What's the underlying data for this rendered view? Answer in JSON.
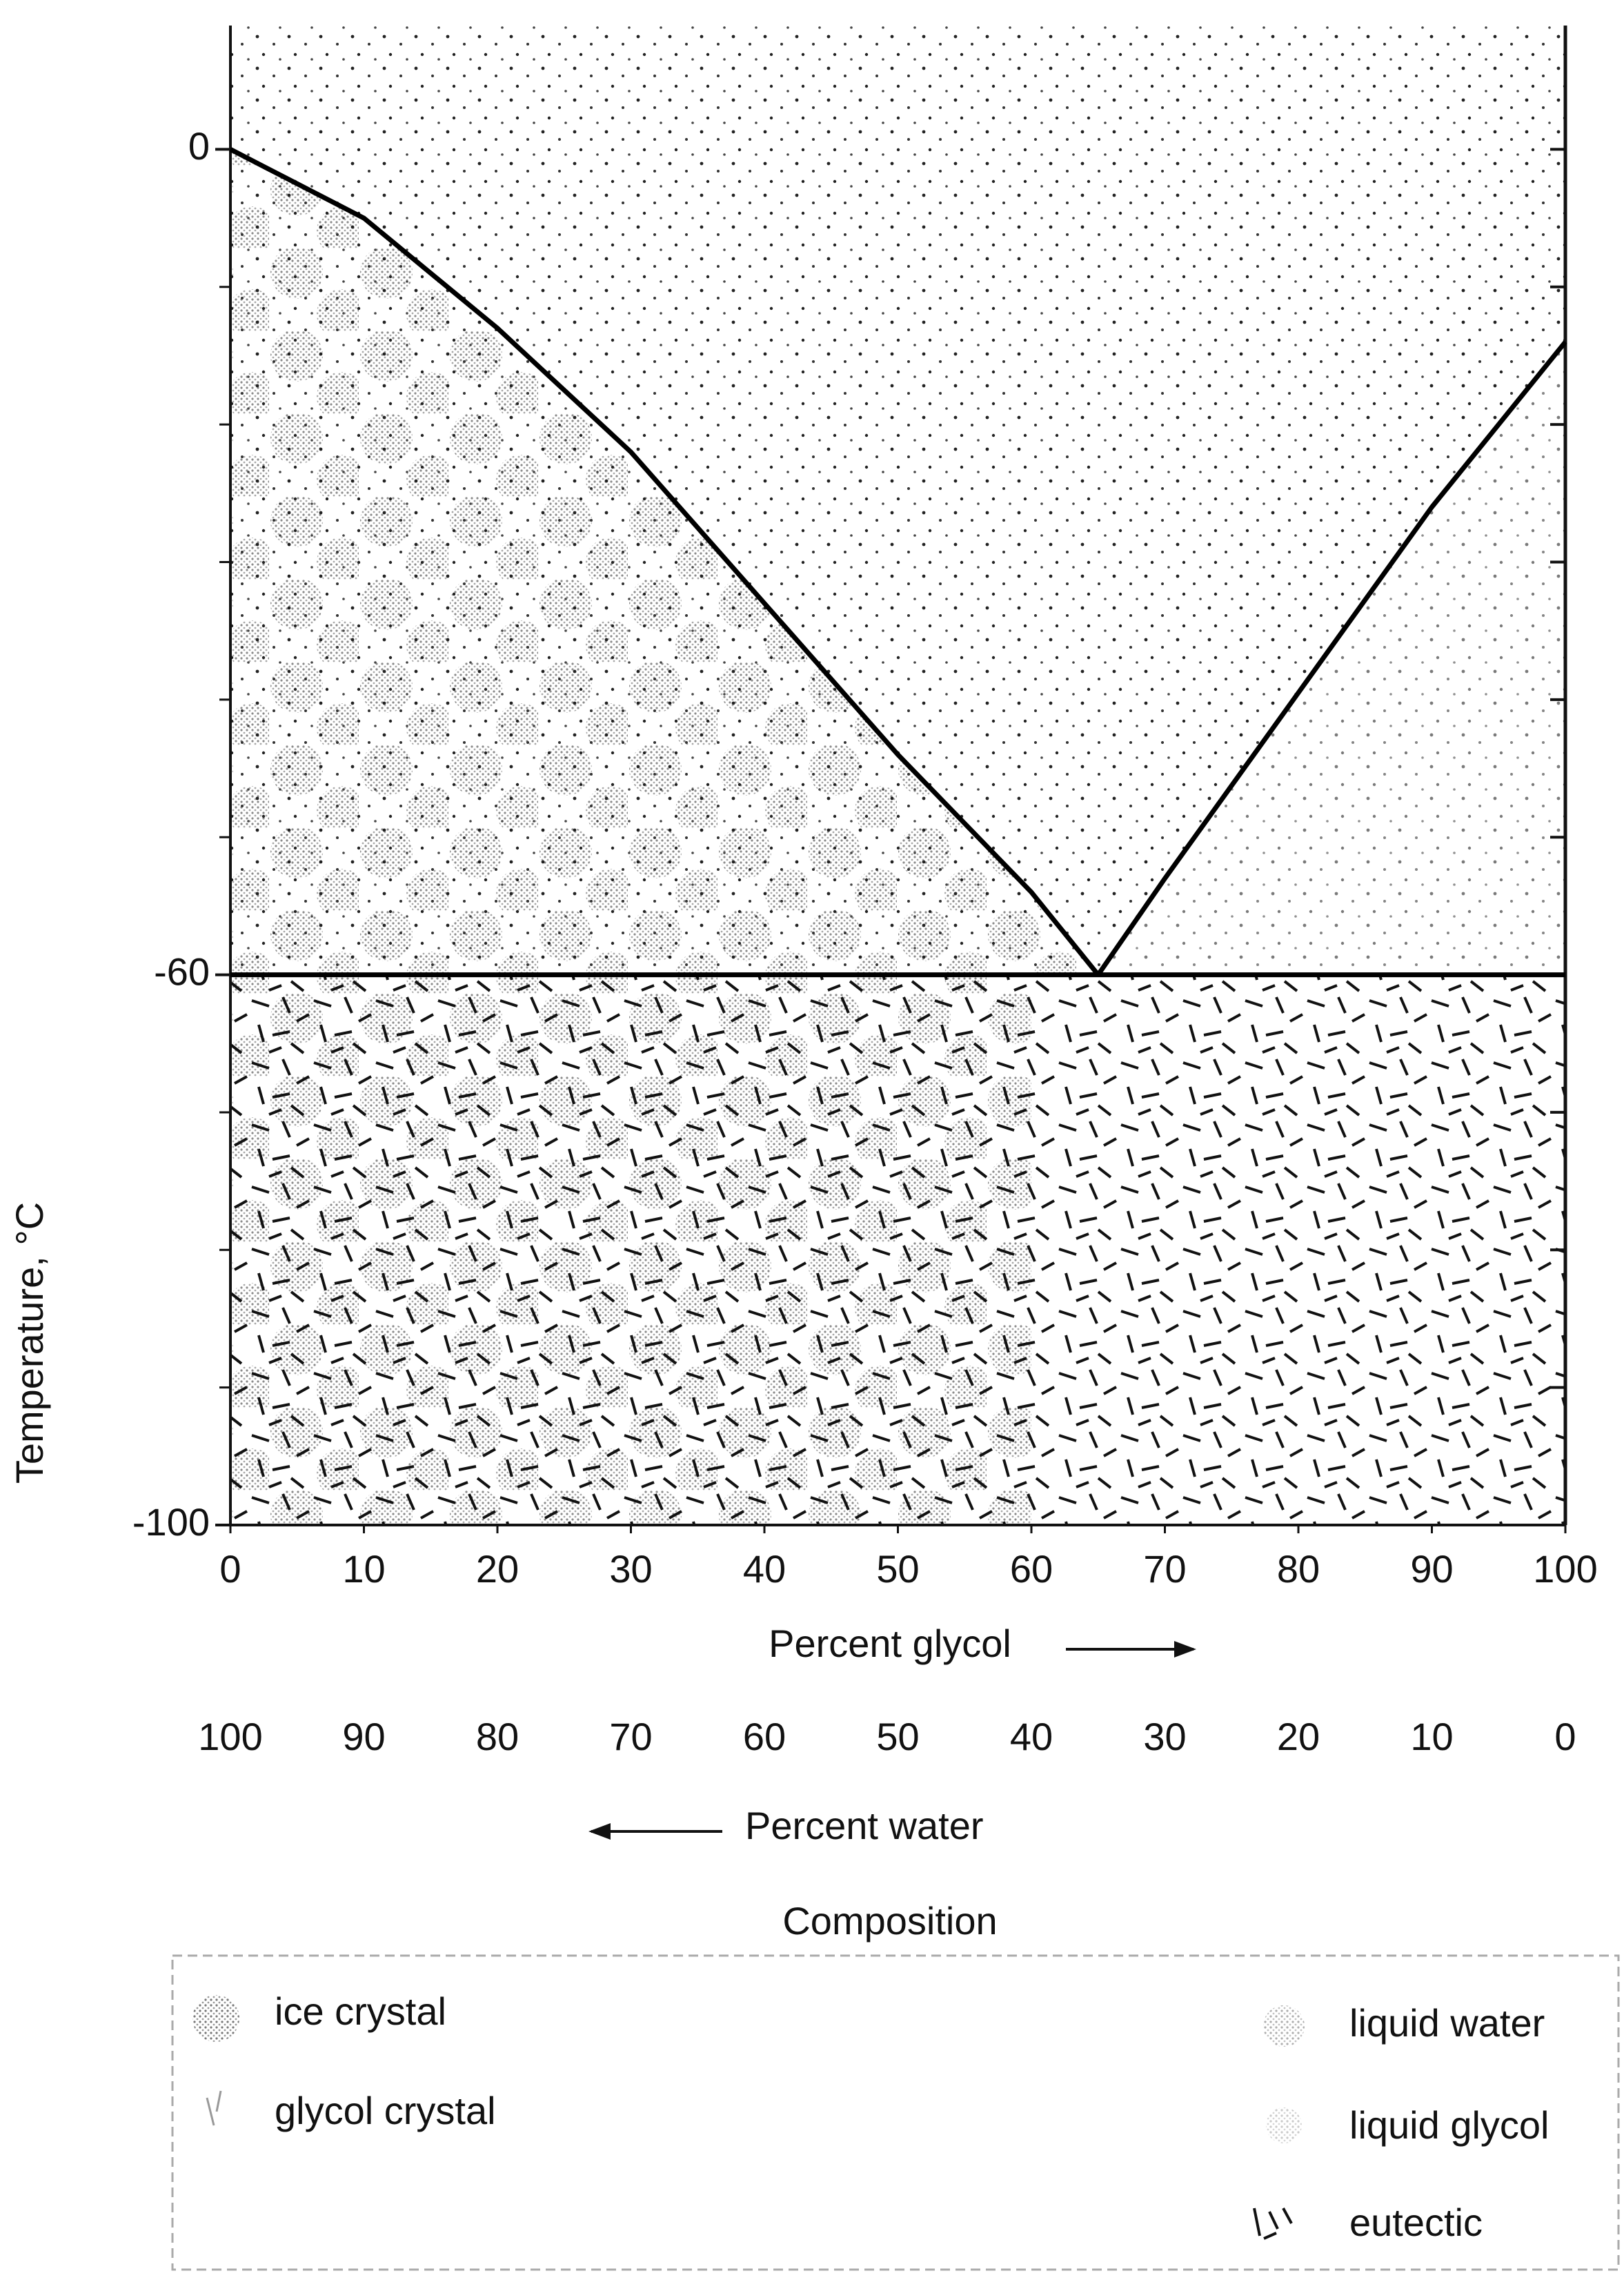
{
  "chart_data": {
    "type": "line",
    "xlabel": "Percent glycol",
    "x2label": "Percent water",
    "ylabel": "Temperature, °C",
    "caption": "Composition",
    "xlim": [
      0,
      100
    ],
    "xticks": [
      0,
      10,
      20,
      30,
      40,
      50,
      60,
      70,
      80,
      90,
      100
    ],
    "x2lim": [
      100,
      0
    ],
    "x2ticks": [
      100,
      90,
      80,
      70,
      60,
      50,
      40,
      30,
      20,
      10,
      0
    ],
    "ylim": [
      -100,
      9
    ],
    "yticks": [
      0,
      -60,
      -100
    ],
    "y_minor_ticks": [
      -10,
      -20,
      -30,
      -40,
      -50,
      -70,
      -80,
      -90
    ],
    "series": [
      {
        "color": "#000000",
        "x": [
          0,
          10,
          20,
          30,
          40,
          50,
          60,
          65
        ],
        "values": [
          0,
          -5,
          -13,
          -22,
          -33,
          -44,
          -54,
          -60
        ]
      },
      {
        "color": "#000000",
        "x": [
          65,
          70,
          80,
          90,
          100
        ],
        "values": [
          -60,
          -53,
          -39.5,
          -26,
          -14
        ]
      },
      {
        "color": "#000000",
        "x": [
          0,
          100
        ],
        "values": [
          -60,
          -60
        ]
      }
    ],
    "legend": {
      "left": [
        "ice crystal",
        "glycol crystal"
      ],
      "right": [
        "liquid water",
        "liquid glycol",
        "eutectic"
      ]
    }
  }
}
